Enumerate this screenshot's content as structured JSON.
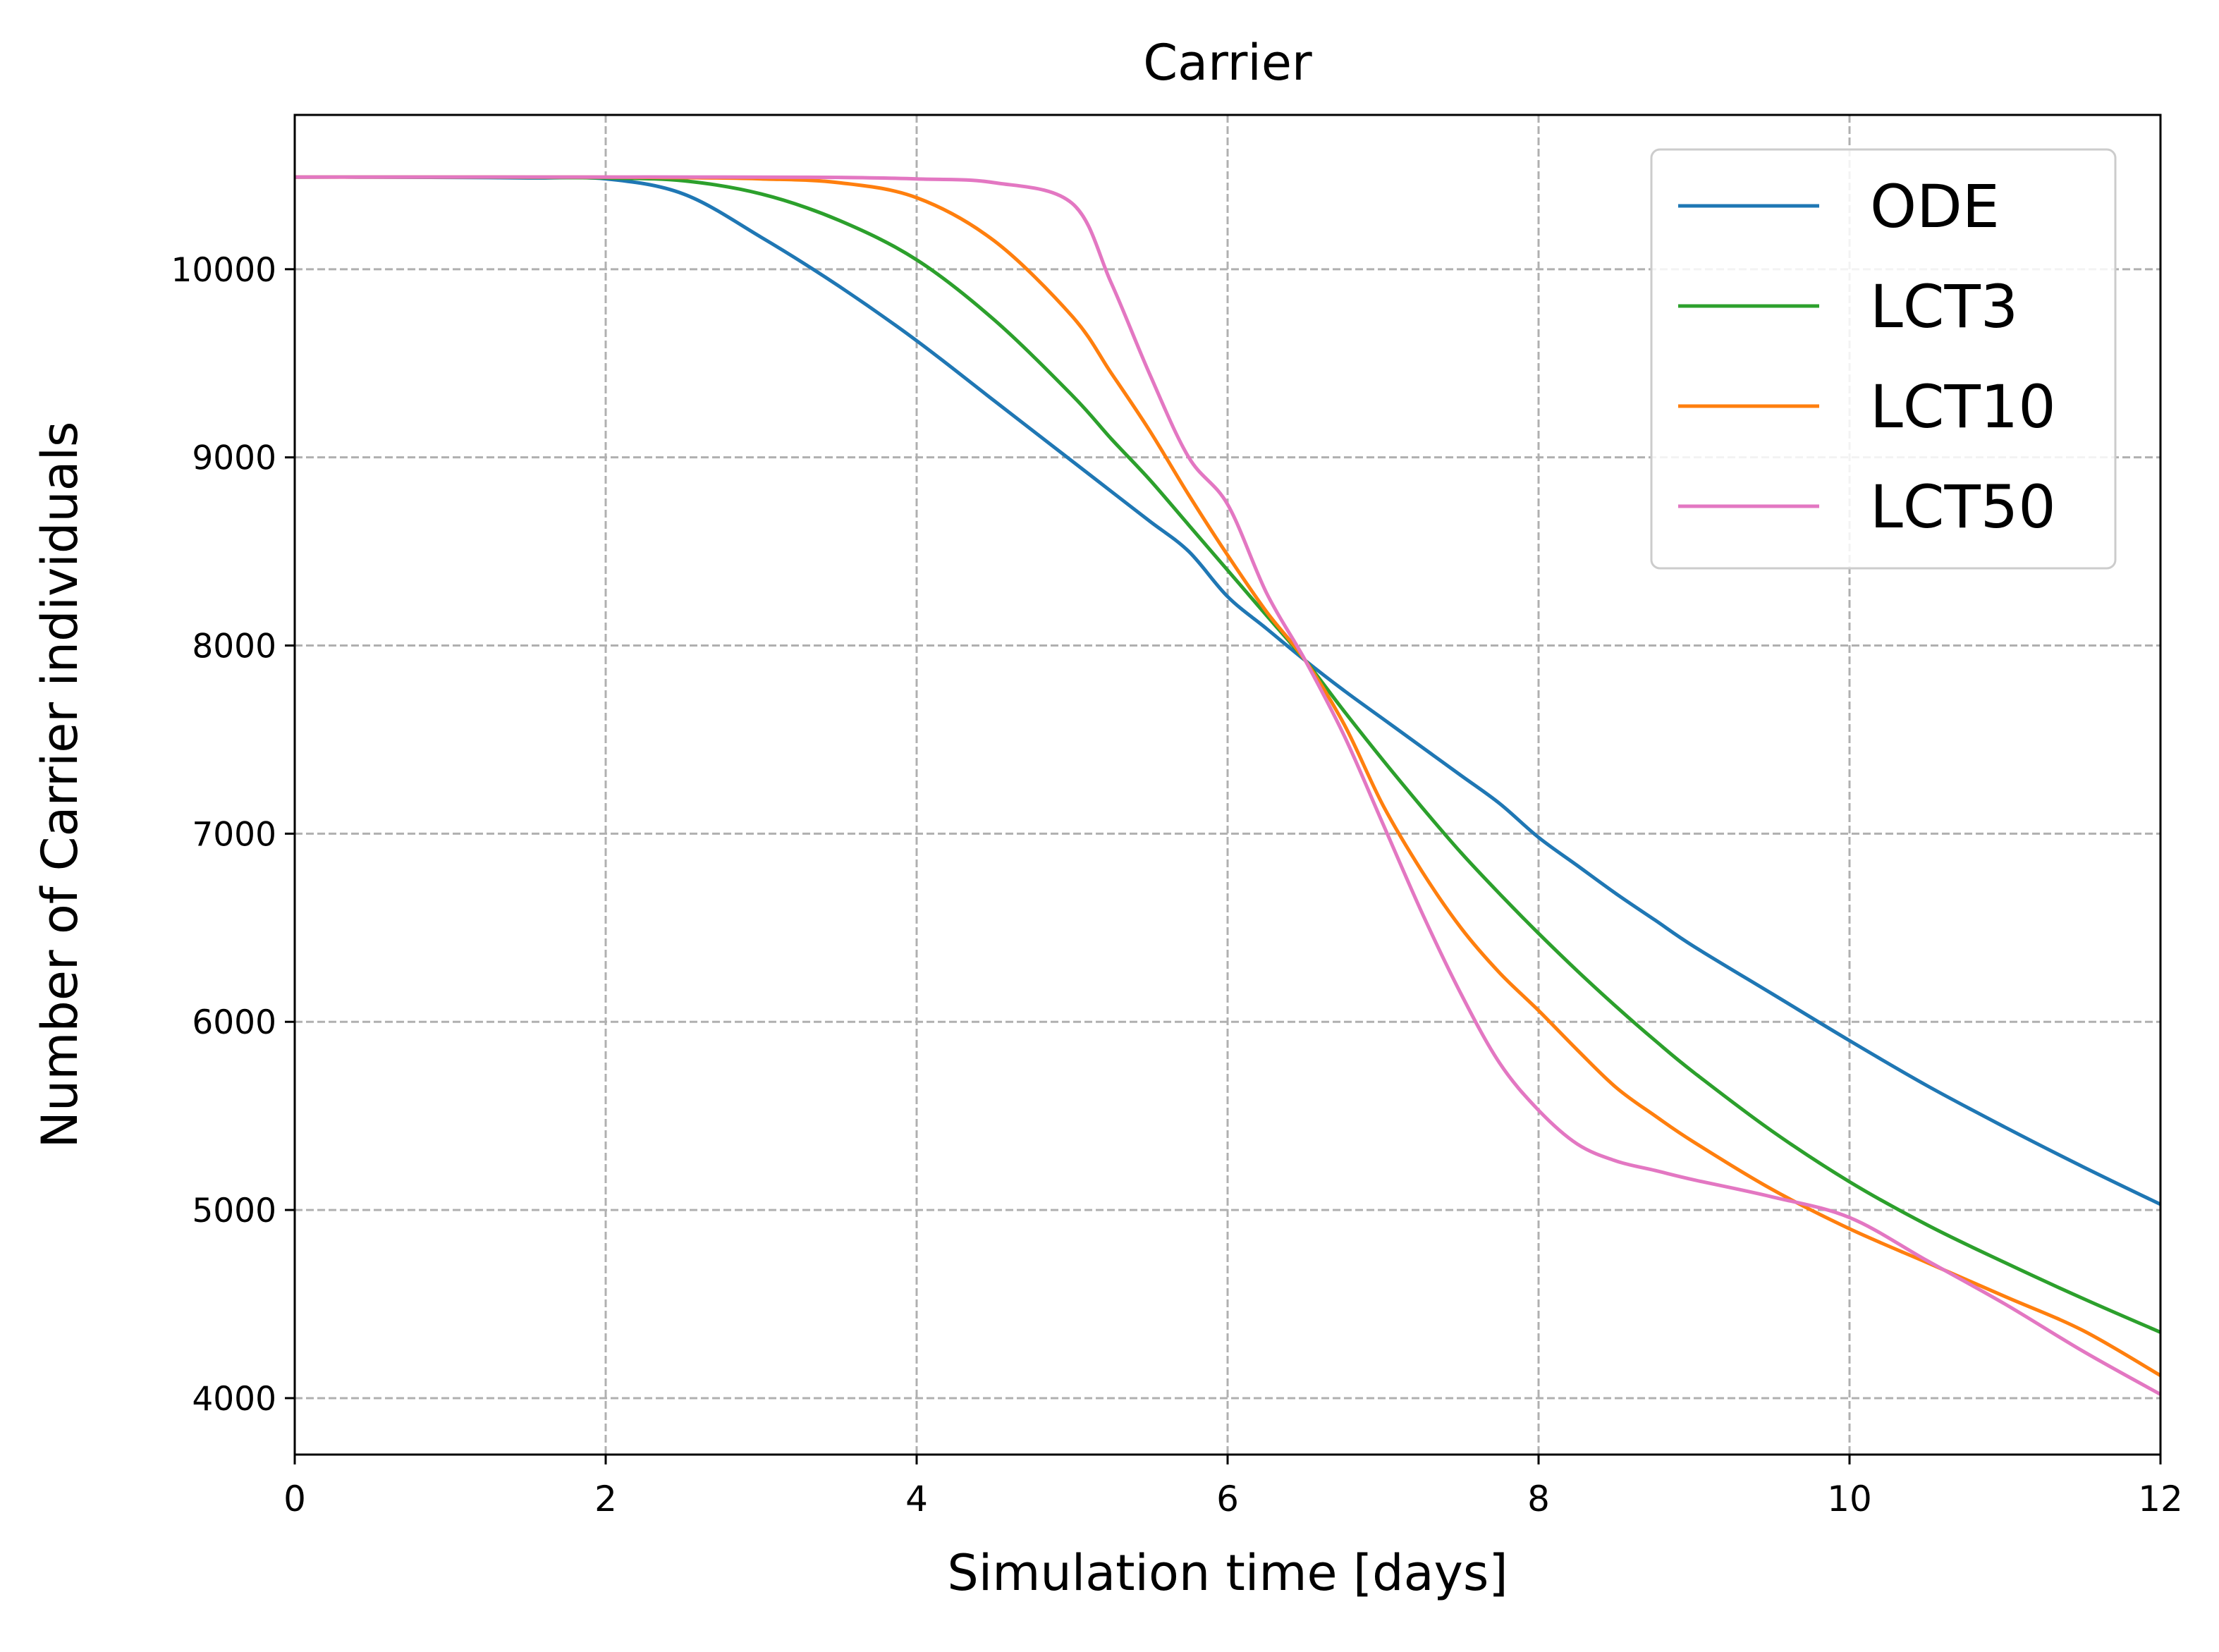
{
  "chart_data": {
    "type": "line",
    "title": "Carrier",
    "xlabel": "Simulation time [days]",
    "ylabel": "Number of Carrier individuals",
    "xlim": [
      0,
      12
    ],
    "ylim": [
      3700,
      10820
    ],
    "xticks": [
      0,
      2,
      4,
      6,
      8,
      10,
      12
    ],
    "yticks": [
      4000,
      5000,
      6000,
      7000,
      8000,
      9000,
      10000
    ],
    "grid": true,
    "grid_style": "dashed",
    "legend_position": "top-right",
    "x": [
      0,
      0.5,
      1,
      1.5,
      2,
      2.5,
      3,
      3.5,
      4,
      4.5,
      5,
      5.25,
      5.5,
      5.75,
      6,
      6.25,
      6.5,
      6.75,
      7,
      7.25,
      7.5,
      7.75,
      8,
      8.25,
      8.5,
      8.75,
      9,
      9.5,
      10,
      10.5,
      11,
      11.5,
      12
    ],
    "series": [
      {
        "name": "ODE",
        "color": "#1f77b4",
        "values": [
          10490,
          10490,
          10488,
          10485,
          10480,
          10400,
          10170,
          9910,
          9620,
          9300,
          8980,
          8820,
          8660,
          8500,
          8260,
          8090,
          7920,
          7760,
          7610,
          7460,
          7310,
          7160,
          6980,
          6830,
          6680,
          6540,
          6400,
          6150,
          5900,
          5660,
          5440,
          5230,
          5030
        ]
      },
      {
        "name": "LCT3",
        "color": "#2ca02c",
        "values": [
          10490,
          10490,
          10489,
          10488,
          10485,
          10470,
          10400,
          10260,
          10050,
          9730,
          9330,
          9100,
          8880,
          8640,
          8400,
          8160,
          7920,
          7650,
          7390,
          7140,
          6900,
          6680,
          6470,
          6270,
          6080,
          5900,
          5730,
          5420,
          5150,
          4920,
          4720,
          4530,
          4350
        ]
      },
      {
        "name": "LCT10",
        "color": "#ff7f0e",
        "values": [
          10490,
          10490,
          10490,
          10490,
          10489,
          10487,
          10480,
          10460,
          10380,
          10150,
          9750,
          9450,
          9140,
          8800,
          8480,
          8180,
          7920,
          7580,
          7150,
          6800,
          6500,
          6260,
          6060,
          5850,
          5650,
          5500,
          5360,
          5110,
          4900,
          4720,
          4540,
          4360,
          4120
        ]
      },
      {
        "name": "LCT50",
        "color": "#e377c2",
        "values": [
          10490,
          10490,
          10490,
          10490,
          10490,
          10490,
          10489,
          10488,
          10480,
          10460,
          10350,
          9930,
          9440,
          9000,
          8750,
          8280,
          7920,
          7520,
          7050,
          6580,
          6150,
          5780,
          5530,
          5350,
          5260,
          5210,
          5160,
          5070,
          4960,
          4730,
          4500,
          4250,
          4020
        ]
      }
    ]
  }
}
